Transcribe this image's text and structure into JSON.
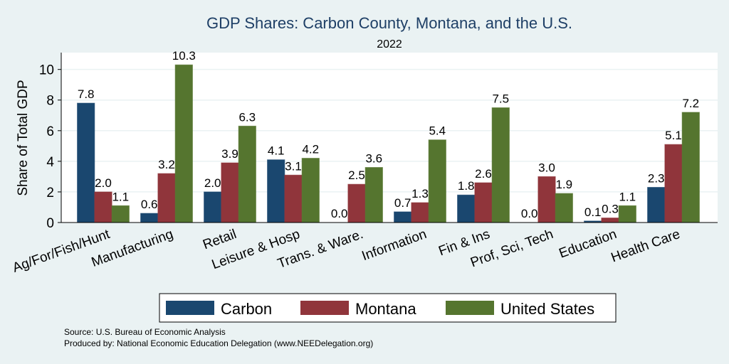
{
  "chart_data": {
    "type": "bar",
    "title": "GDP Shares: Carbon County, Montana, and the U.S.",
    "subtitle": "2022",
    "xlabel": "",
    "ylabel": "Share of Total GDP",
    "ylim": [
      0,
      11.1
    ],
    "yticks": [
      0,
      2,
      4,
      6,
      8,
      10
    ],
    "grid": true,
    "legend_position": "bottom",
    "categories": [
      "Ag/For/Fish/Hunt",
      "Manufacturing",
      "Retail",
      "Leisure & Hosp",
      "Trans. & Ware.",
      "Information",
      "Fin & Ins",
      "Prof, Sci, Tech",
      "Education",
      "Health Care"
    ],
    "series": [
      {
        "name": "Carbon",
        "color": "#1a476f",
        "values": [
          7.8,
          0.6,
          2.0,
          4.1,
          0.0,
          0.7,
          1.8,
          0.0,
          0.1,
          2.3
        ]
      },
      {
        "name": "Montana",
        "color": "#90353b",
        "values": [
          2.0,
          3.2,
          3.9,
          3.1,
          2.5,
          1.3,
          2.6,
          3.0,
          0.3,
          5.1
        ]
      },
      {
        "name": "United States",
        "color": "#55752f",
        "values": [
          1.1,
          10.3,
          6.3,
          4.2,
          3.6,
          5.4,
          7.5,
          1.9,
          1.1,
          7.2
        ]
      }
    ],
    "notes": [
      "Source: U.S. Bureau of Economic Analysis",
      "Produced by: National Economic Education Delegation (www.NEEDelegation.org)"
    ]
  }
}
